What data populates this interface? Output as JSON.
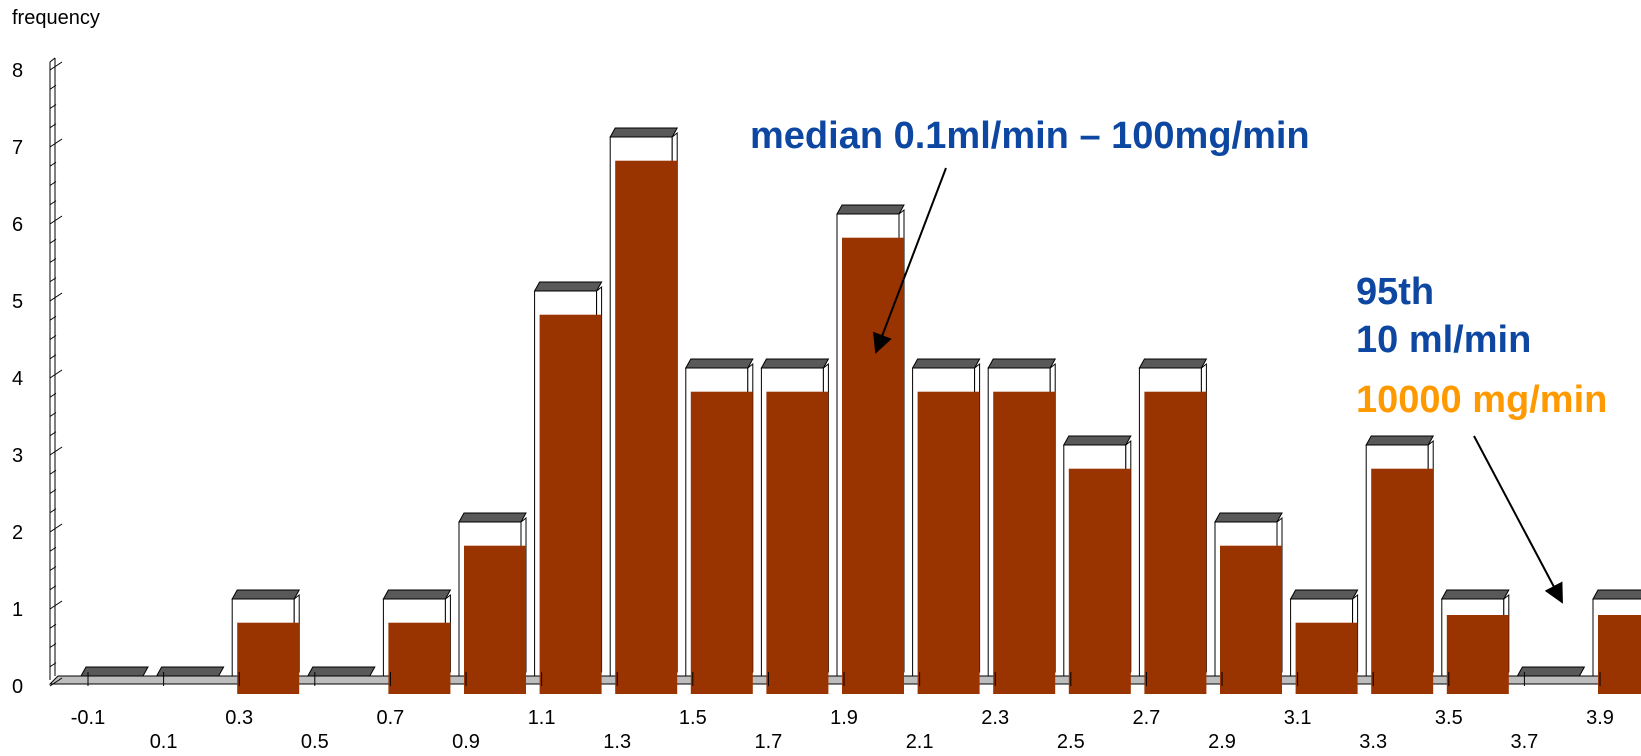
{
  "chart_data": {
    "type": "bar",
    "ylabel": "frequency",
    "xlabel": "",
    "ylim": [
      0,
      8
    ],
    "y_ticks": [
      "0",
      "1",
      "2",
      "3",
      "4",
      "5",
      "6",
      "7",
      "8"
    ],
    "categories": [
      "-0.1",
      "0.1",
      "0.3",
      "0.5",
      "0.7",
      "0.9",
      "1.1",
      "1.3",
      "1.5",
      "1.7",
      "1.9",
      "2.1",
      "2.3",
      "2.5",
      "2.7",
      "2.9",
      "3.1",
      "3.3",
      "3.5",
      "3.7",
      "3.9"
    ],
    "series": [
      {
        "values": [
          0,
          0,
          1,
          0,
          1,
          2,
          5,
          7,
          4,
          4,
          6,
          4,
          4,
          3,
          4,
          2,
          1,
          3,
          1,
          0,
          1
        ],
        "style": "outline"
      },
      {
        "values": [
          0,
          0,
          0.9,
          0,
          0.9,
          1.9,
          4.9,
          6.9,
          3.9,
          3.9,
          5.9,
          3.9,
          3.9,
          2.9,
          3.9,
          1.9,
          0.9,
          2.9,
          1.0,
          0,
          1.0
        ],
        "style": "filled"
      }
    ],
    "colors": {
      "filled": "#993300",
      "outline": "#ffffff",
      "cap": "#595959",
      "median_text": "#0d47a1",
      "p95_text": "#0d47a1",
      "mg_text": "#ff9900"
    },
    "annotations": [
      {
        "id": "median",
        "text": "median 0.1ml/min – 100mg/min",
        "points_to": "1.9"
      },
      {
        "id": "p95_line1",
        "text": "95th"
      },
      {
        "id": "p95_line2",
        "text": "10 ml/min"
      },
      {
        "id": "p95_mg",
        "text": "10000 mg/min",
        "points_to": "3.9"
      }
    ]
  }
}
